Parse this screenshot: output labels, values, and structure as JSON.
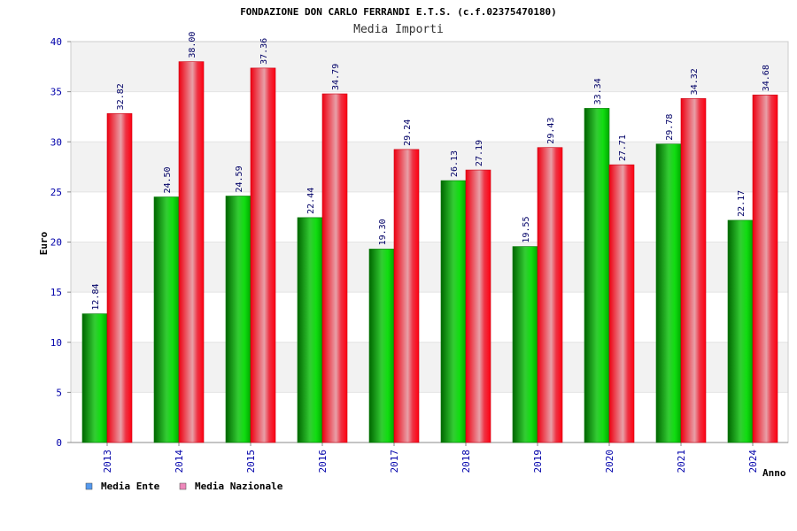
{
  "colors": {
    "ente": "#00aa00",
    "nazionale": "#ee1122",
    "legend_ente": "#5599ee",
    "legend_nazionale": "#ee88bb",
    "band": "#f2f2f2",
    "text_blue": "#0000aa"
  },
  "chart_data": {
    "type": "bar",
    "title": "FONDAZIONE DON CARLO FERRANDI E.T.S. (c.f.02375470180)",
    "subtitle": "Media Importi",
    "xlabel": "Anno",
    "ylabel": "Euro",
    "ylim": [
      0,
      40
    ],
    "yticks": [
      0,
      5,
      10,
      15,
      20,
      25,
      30,
      35,
      40
    ],
    "categories": [
      "2013",
      "2014",
      "2015",
      "2016",
      "2017",
      "2018",
      "2019",
      "2020",
      "2021",
      "2024"
    ],
    "series": [
      {
        "name": "Media Ente",
        "values": [
          12.84,
          24.5,
          24.59,
          22.44,
          19.3,
          26.13,
          19.55,
          33.34,
          29.78,
          22.17
        ],
        "labels": [
          "12.84",
          "24.50",
          "24.59",
          "22.44",
          "19.30",
          "26.13",
          "19.55",
          "33.34",
          "29.78",
          "22.17"
        ]
      },
      {
        "name": "Media Nazionale",
        "values": [
          32.82,
          38.0,
          37.36,
          34.79,
          29.24,
          27.19,
          29.43,
          27.71,
          34.32,
          34.68
        ],
        "labels": [
          "32.82",
          "38.00",
          "37.36",
          "34.79",
          "29.24",
          "27.19",
          "29.43",
          "27.71",
          "34.32",
          "34.68"
        ]
      }
    ],
    "legend": "bottom-left",
    "grid": true
  }
}
